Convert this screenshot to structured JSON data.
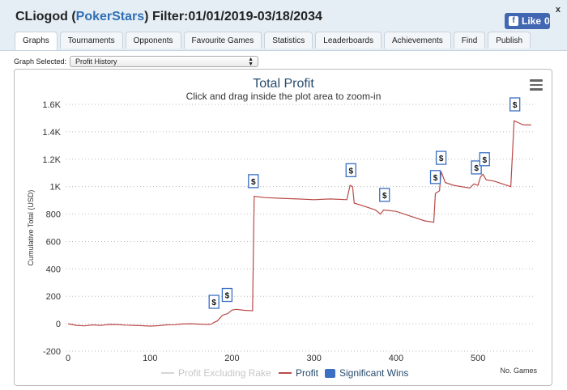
{
  "header": {
    "player": "CLiogod",
    "site": "PokerStars",
    "filter": "Filter:01/01/2019-03/18/2034",
    "close_label": "x",
    "like_label": "Like",
    "like_count": "0"
  },
  "tabs": [
    "Graphs",
    "Tournaments",
    "Opponents",
    "Favourite Games",
    "Statistics",
    "Leaderboards",
    "Achievements",
    "Find",
    "Publish"
  ],
  "active_tab": "Graphs",
  "graph_select": {
    "label": "Graph Selected:",
    "value": "Profit History"
  },
  "colors": {
    "profit_line": "#b94a48",
    "excl_rake_line": "#d6d6d6",
    "significant_win": "#3a6fc4",
    "title": "#274b6d"
  },
  "chart_data": {
    "type": "line",
    "title": "Total Profit",
    "subtitle": "Click and drag inside the plot area to zoom-in",
    "xlabel": "No. Games",
    "ylabel": "Cumulative Total (USD)",
    "xlim": [
      -3,
      570
    ],
    "ylim": [
      -200,
      1600
    ],
    "x_ticks": [
      0,
      100,
      200,
      300,
      400,
      500
    ],
    "y_ticks": [
      -200,
      0,
      200,
      400,
      600,
      800,
      1000,
      1200,
      1400,
      1600
    ],
    "y_tick_labels": [
      "-200",
      "0",
      "200",
      "400",
      "600",
      "800",
      "1K",
      "1.2K",
      "1.4K",
      "1.6K"
    ],
    "grid": true,
    "series": [
      {
        "name": "Profit Excluding Rake",
        "visible": false,
        "values": []
      },
      {
        "name": "Profit",
        "points": [
          [
            0,
            0
          ],
          [
            10,
            -12
          ],
          [
            20,
            -15
          ],
          [
            30,
            -8
          ],
          [
            40,
            -12
          ],
          [
            50,
            -5
          ],
          [
            60,
            -6
          ],
          [
            70,
            -10
          ],
          [
            80,
            -12
          ],
          [
            90,
            -14
          ],
          [
            100,
            -17
          ],
          [
            110,
            -14
          ],
          [
            120,
            -8
          ],
          [
            130,
            -7
          ],
          [
            140,
            -2
          ],
          [
            150,
            0
          ],
          [
            160,
            -3
          ],
          [
            170,
            -5
          ],
          [
            175,
            -3
          ],
          [
            178,
            10
          ],
          [
            182,
            20
          ],
          [
            185,
            40
          ],
          [
            188,
            60
          ],
          [
            190,
            65
          ],
          [
            195,
            75
          ],
          [
            200,
            100
          ],
          [
            205,
            105
          ],
          [
            215,
            98
          ],
          [
            225,
            95
          ],
          [
            227,
            930
          ],
          [
            240,
            920
          ],
          [
            260,
            915
          ],
          [
            280,
            910
          ],
          [
            300,
            905
          ],
          [
            320,
            910
          ],
          [
            340,
            905
          ],
          [
            344,
            1010
          ],
          [
            347,
            1000
          ],
          [
            349,
            880
          ],
          [
            360,
            860
          ],
          [
            375,
            830
          ],
          [
            381,
            800
          ],
          [
            385,
            830
          ],
          [
            400,
            820
          ],
          [
            420,
            780
          ],
          [
            435,
            750
          ],
          [
            446,
            740
          ],
          [
            448,
            950
          ],
          [
            453,
            970
          ],
          [
            455,
            1110
          ],
          [
            460,
            1030
          ],
          [
            470,
            1010
          ],
          [
            480,
            1000
          ],
          [
            490,
            990
          ],
          [
            495,
            1020
          ],
          [
            500,
            1010
          ],
          [
            503,
            1070
          ],
          [
            506,
            1090
          ],
          [
            510,
            1050
          ],
          [
            520,
            1040
          ],
          [
            530,
            1020
          ],
          [
            540,
            1000
          ],
          [
            544,
            1480
          ],
          [
            548,
            1470
          ],
          [
            555,
            1450
          ],
          [
            565,
            1450
          ]
        ]
      }
    ],
    "significant_wins": [
      {
        "x": 178,
        "y": 160
      },
      {
        "x": 194,
        "y": 210
      },
      {
        "x": 226,
        "y": 1040
      },
      {
        "x": 345,
        "y": 1120
      },
      {
        "x": 386,
        "y": 940
      },
      {
        "x": 448,
        "y": 1070
      },
      {
        "x": 455,
        "y": 1210
      },
      {
        "x": 498,
        "y": 1140
      },
      {
        "x": 508,
        "y": 1200
      },
      {
        "x": 545,
        "y": 1600
      }
    ],
    "significant_win_symbol": "$",
    "legend": [
      "Profit Excluding Rake",
      "Profit",
      "Significant Wins"
    ],
    "legend_position": "bottom-center"
  }
}
